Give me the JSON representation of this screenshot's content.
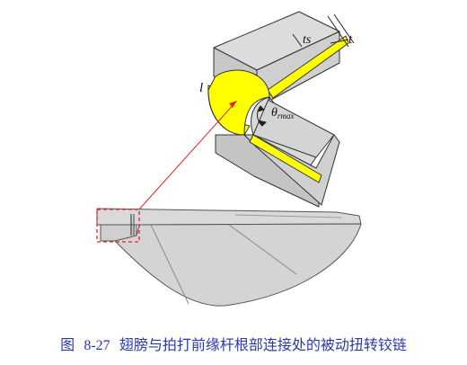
{
  "labels": {
    "l": "l",
    "ts": "ts",
    "t": "t",
    "theta": "θ",
    "theta_sub": "rmax"
  },
  "caption": {
    "prefix": "图",
    "number": "8-27",
    "text": "翅膀与拍打前缘杆根部连接处的被动扭转铰链"
  },
  "colors": {
    "block": "#d6d6d6",
    "block_dark": "#bfbfbf",
    "hinge": "#ffff00",
    "outline": "#333333",
    "wing": "#d2d2d2",
    "callout": "#e8242a",
    "caption": "#2b3aa6"
  }
}
